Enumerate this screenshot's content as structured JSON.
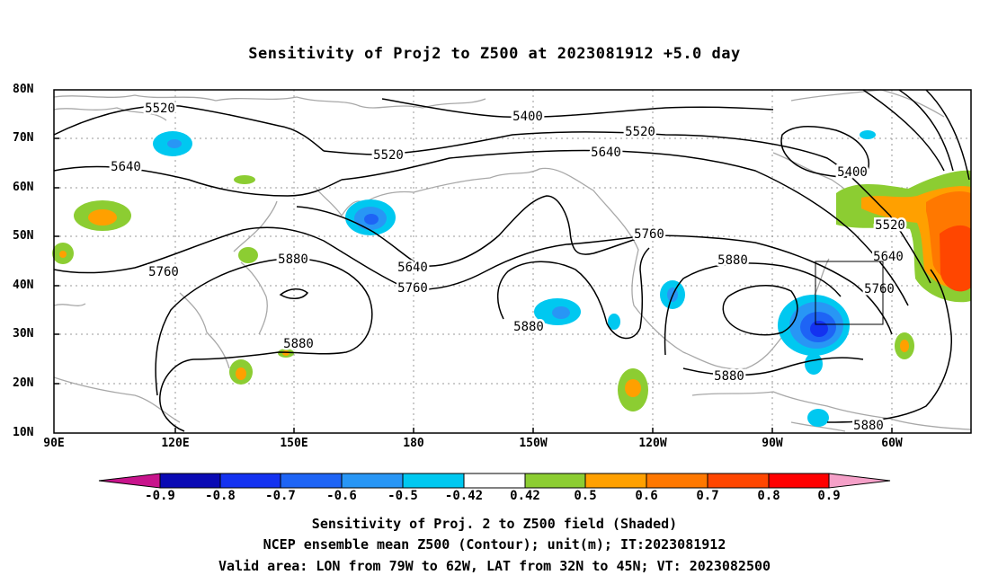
{
  "title": "Sensitivity of Proj2 to Z500 at 2023081912 +5.0 day",
  "lat_labels": [
    "80N",
    "70N",
    "60N",
    "50N",
    "40N",
    "30N",
    "20N",
    "10N"
  ],
  "lon_labels": [
    "90E",
    "120E",
    "150E",
    "180",
    "150W",
    "120W",
    "90W",
    "60W"
  ],
  "contour_labels": [
    "5520",
    "5400",
    "5520",
    "5520",
    "5640",
    "5640",
    "5760",
    "5880",
    "5640",
    "5760",
    "5760",
    "5880",
    "5880",
    "5880",
    "5400",
    "5520",
    "5640",
    "5760",
    "5880",
    "5880"
  ],
  "colorbar": {
    "labels": [
      "-0.9",
      "-0.8",
      "-0.7",
      "-0.6",
      "-0.5",
      "-0.42",
      "0.42",
      "0.5",
      "0.6",
      "0.7",
      "0.8",
      "0.9"
    ],
    "colors": [
      "#0a0ab4",
      "#1432f0",
      "#1e64f5",
      "#2896f5",
      "#00c8f0",
      "#ffffff",
      "#8ccd32",
      "#ffa000",
      "#ff7800",
      "#ff4600",
      "#ff0000"
    ],
    "low_end": "#c8148c",
    "high_end": "#f5a0c8"
  },
  "captions": {
    "line1": "Sensitivity of Proj. 2 to Z500 field (Shaded)",
    "line2": "NCEP ensemble mean Z500 (Contour); unit(m); IT:2023081912",
    "line3": "Valid area: LON from 79W to 62W, LAT from 32N to 45N; VT: 2023082500"
  }
}
